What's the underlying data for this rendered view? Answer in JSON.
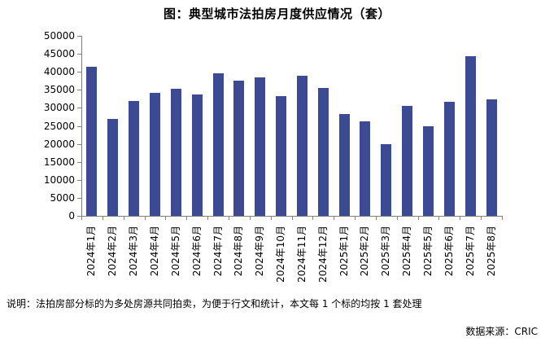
{
  "note": "说明：法拍房部分标的为多处房源共同拍卖，为便于行文和统计，本文每 1 个标的均按 1 套处理",
  "source": "数据来源：CRIC",
  "colors": {
    "bar": "#3B4A92",
    "axis": "#808080",
    "text": "#000000"
  },
  "chart_data": {
    "type": "bar",
    "title": "图：典型城市法拍房月度供应情况（套）",
    "categories": [
      "2024年1月",
      "2024年2月",
      "2024年3月",
      "2024年4月",
      "2024年5月",
      "2024年6月",
      "2024年7月",
      "2024年8月",
      "2024年9月",
      "2024年10月",
      "2024年11月",
      "2024年12月",
      "2025年1月",
      "2025年2月",
      "2025年3月",
      "2025年4月",
      "2025年5月",
      "2025年6月",
      "2025年7月",
      "2025年8月"
    ],
    "values": [
      41300,
      27000,
      32000,
      34100,
      35200,
      33600,
      39500,
      37500,
      38400,
      33300,
      39000,
      35500,
      28300,
      26300,
      19800,
      30500,
      24900,
      31700,
      44300,
      32300
    ],
    "xlabel": "",
    "ylabel": "",
    "ylim": [
      0,
      50000
    ],
    "ytick_step": 5000,
    "grid": false,
    "legend": false
  }
}
